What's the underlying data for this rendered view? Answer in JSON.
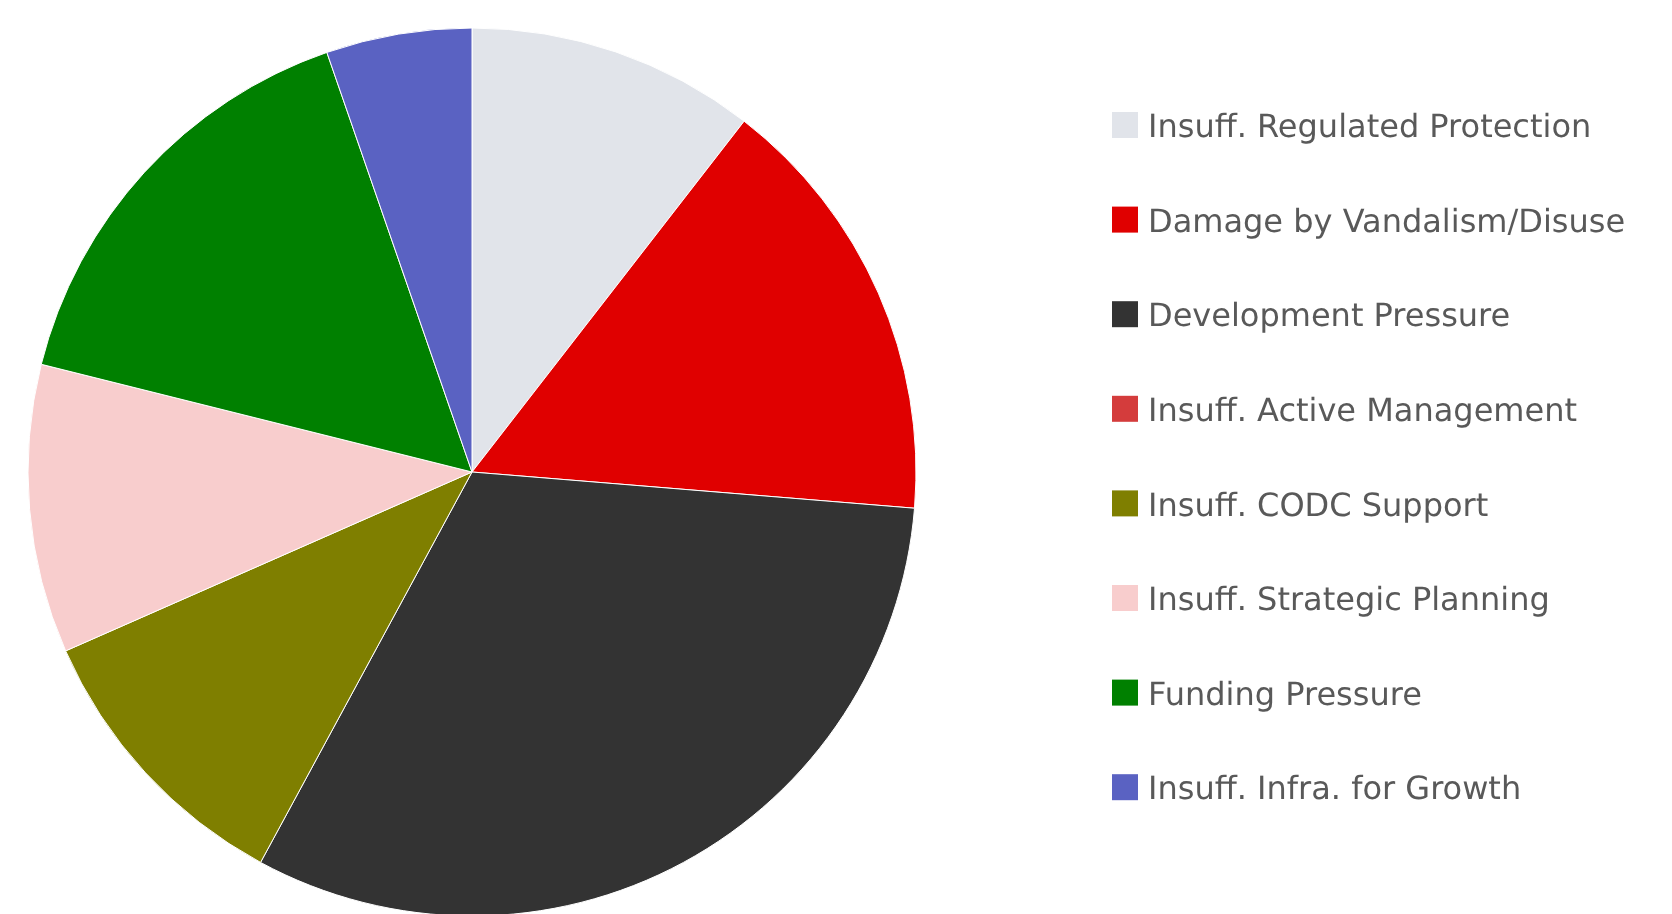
{
  "chart_data": {
    "type": "pie",
    "categories": [
      "Insuff. Regulated Protection",
      "Damage by Vandalism/Disuse",
      "Development Pressure",
      "Insuff. Active Management",
      "Insuff. CODC Support",
      "Insuff. Strategic Planning",
      "Funding Pressure",
      "Insuff. Infra. for Growth"
    ],
    "values": [
      10.5,
      15.8,
      31.6,
      0,
      10.5,
      10.5,
      15.8,
      5.3
    ],
    "colors": [
      "#e1e4ea",
      "#e00000",
      "#333333",
      "#d43c3c",
      "#7f7f00",
      "#f8cdcd",
      "#008000",
      "#5a62c2"
    ],
    "legend": "right"
  }
}
